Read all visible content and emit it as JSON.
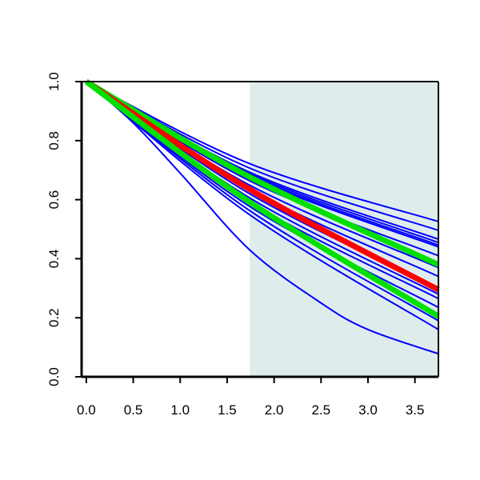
{
  "chart_data": {
    "type": "line",
    "title": "",
    "xlabel": "",
    "ylabel": "",
    "xlim": [
      -0.05,
      3.75
    ],
    "ylim": [
      0.0,
      1.0
    ],
    "x_ticks": [
      0.0,
      0.5,
      1.0,
      1.5,
      2.0,
      2.5,
      3.0,
      3.5
    ],
    "x_tick_labels": [
      "0.0",
      "0.5",
      "1.0",
      "1.5",
      "2.0",
      "2.5",
      "3.0",
      "3.5"
    ],
    "y_ticks": [
      0.0,
      0.2,
      0.4,
      0.6,
      0.8,
      1.0
    ],
    "y_tick_labels": [
      "0.0",
      "0.2",
      "0.4",
      "0.6",
      "0.8",
      "1.0"
    ],
    "grid": false,
    "shaded_region": {
      "x_from": 1.74,
      "x_to": 3.75,
      "color": "#dfecec"
    },
    "series": [
      {
        "color": "#0000ff",
        "width": "thin",
        "x": [
          0,
          1.74,
          3.75
        ],
        "y": [
          1.0,
          0.722,
          0.526
        ]
      },
      {
        "color": "#0000ff",
        "width": "thin",
        "x": [
          0,
          1.74,
          3.75
        ],
        "y": [
          1.0,
          0.707,
          0.496
        ]
      },
      {
        "color": "#0000ff",
        "width": "thin",
        "x": [
          0,
          1.74,
          3.75
        ],
        "y": [
          1.0,
          0.693,
          0.466
        ]
      },
      {
        "color": "#0000ff",
        "width": "thin",
        "x": [
          0,
          1.74,
          3.75
        ],
        "y": [
          1.0,
          0.688,
          0.455
        ]
      },
      {
        "color": "#0000ff",
        "width": "thin",
        "x": [
          0,
          1.74,
          3.75
        ],
        "y": [
          1.0,
          0.683,
          0.446
        ]
      },
      {
        "color": "#0000ff",
        "width": "thin",
        "x": [
          0,
          1.74,
          3.75
        ],
        "y": [
          1.0,
          0.678,
          0.44
        ]
      },
      {
        "color": "#0000ff",
        "width": "thin",
        "x": [
          0,
          1.74,
          3.75
        ],
        "y": [
          1.0,
          0.664,
          0.41
        ]
      },
      {
        "color": "#0000ff",
        "width": "thin",
        "x": [
          0,
          1.74,
          3.75
        ],
        "y": [
          1.0,
          0.649,
          0.37
        ]
      },
      {
        "color": "#0000ff",
        "width": "thin",
        "x": [
          0,
          1.74,
          3.75
        ],
        "y": [
          1.0,
          0.635,
          0.34
        ]
      },
      {
        "color": "#0000ff",
        "width": "thin",
        "x": [
          0,
          1.74,
          3.75
        ],
        "y": [
          1.0,
          0.62,
          0.3
        ]
      },
      {
        "color": "#0000ff",
        "width": "thin",
        "x": [
          0,
          1.74,
          3.75
        ],
        "y": [
          1.0,
          0.606,
          0.28
        ]
      },
      {
        "color": "#0000ff",
        "width": "thin",
        "x": [
          0,
          1.74,
          3.75
        ],
        "y": [
          1.0,
          0.592,
          0.265
        ]
      },
      {
        "color": "#0000ff",
        "width": "thin",
        "x": [
          0,
          1.74,
          3.75
        ],
        "y": [
          1.0,
          0.577,
          0.235
        ]
      },
      {
        "color": "#0000ff",
        "width": "thin",
        "x": [
          0,
          1.74,
          3.75
        ],
        "y": [
          1.0,
          0.563,
          0.19
        ]
      },
      {
        "color": "#0000ff",
        "width": "thin",
        "x": [
          0,
          1.74,
          3.75
        ],
        "y": [
          1.0,
          0.549,
          0.16
        ]
      },
      {
        "color": "#0000ff",
        "width": "thin",
        "x": [
          0,
          0.5,
          1.0,
          1.74,
          2.5,
          3.0,
          3.75
        ],
        "y": [
          1.0,
          0.86,
          0.69,
          0.43,
          0.25,
          0.16,
          0.078
        ]
      },
      {
        "color": "#00e000",
        "width": "thick",
        "x": [
          0,
          1.74,
          3.75
        ],
        "y": [
          1.0,
          0.677,
          0.38
        ]
      },
      {
        "color": "#ff0000",
        "width": "thick",
        "x": [
          0,
          1.74,
          3.75
        ],
        "y": [
          1.0,
          0.635,
          0.295
        ]
      },
      {
        "color": "#00e000",
        "width": "thick",
        "x": [
          0,
          1.74,
          3.75
        ],
        "y": [
          1.0,
          0.592,
          0.205
        ]
      }
    ]
  }
}
